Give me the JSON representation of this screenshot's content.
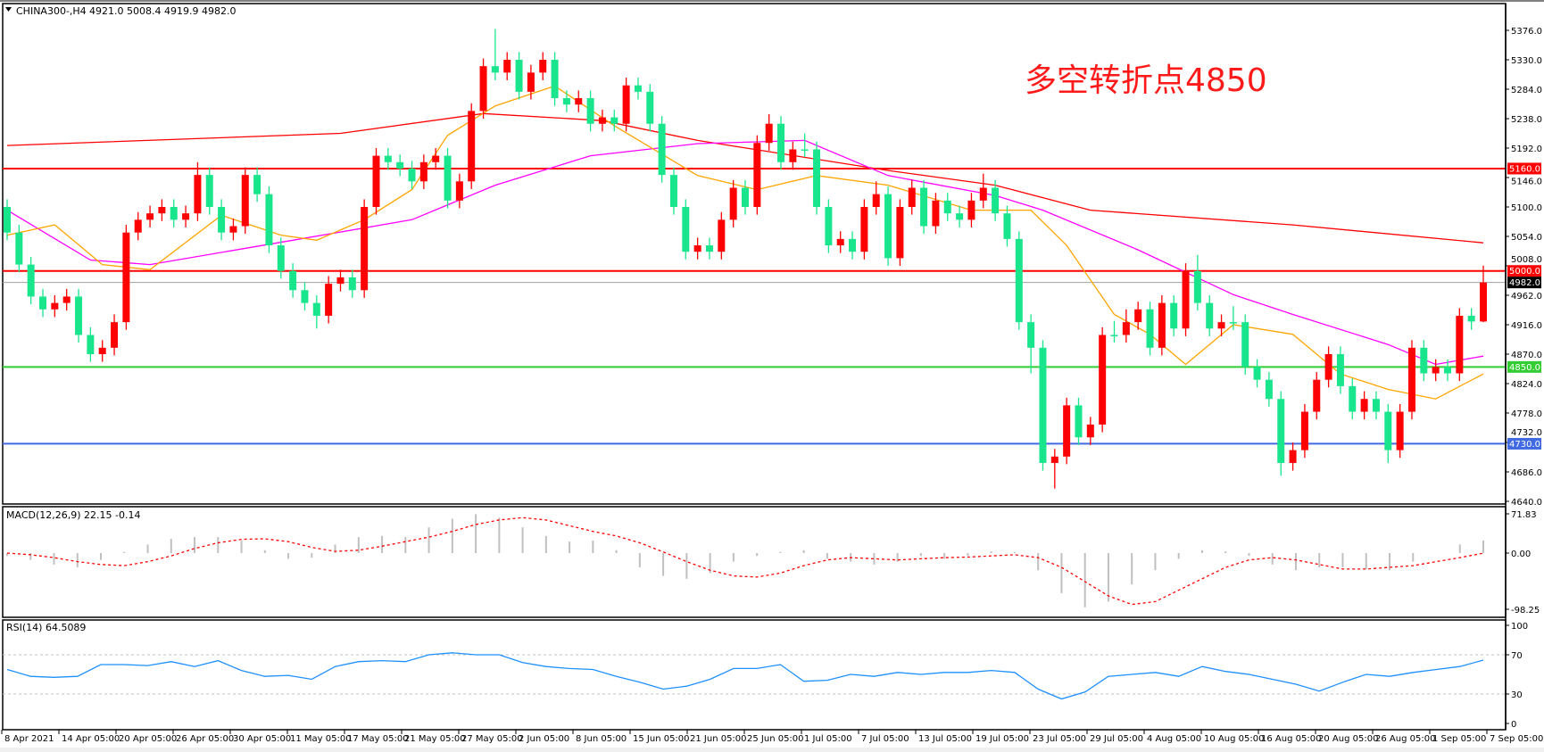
{
  "header": {
    "symbol": "CHINA300-,H4",
    "ohlc": "4921.0 5008.4 4919.9 4982.0",
    "dropdown_icon": "triangle-down-icon"
  },
  "annotation": "多空转折点4850",
  "colors": {
    "bull": "#ff0000",
    "bear": "#19e68c",
    "ma_fast": "#ffa500",
    "ma_mid": "#ff00ff",
    "ma_slow": "#ff0000",
    "macd_hist": "#c0c0c0",
    "macd_signal": "#ff0000",
    "rsi": "#1e90ff"
  },
  "levels": [
    {
      "price": 5160.0,
      "label": "5160.0",
      "color": "#ff0000"
    },
    {
      "price": 5000.0,
      "label": "5000.0",
      "color": "#ff0000"
    },
    {
      "price": 4850.0,
      "label": "4850.0",
      "color": "#32cd32"
    },
    {
      "price": 4730.0,
      "label": "4730.0",
      "color": "#4169e1"
    },
    {
      "price": 4982.0,
      "label": "4982.0",
      "color": "#000000",
      "line": "#a0a0a0"
    }
  ],
  "chart_data": [
    {
      "type": "candlestick",
      "title": "CHINA300-,H4",
      "ylim": [
        4640,
        5376
      ],
      "y_ticks": [
        "5376.0",
        "5330.0",
        "5284.0",
        "5238.0",
        "5192.0",
        "5146.0",
        "5100.0",
        "5054.0",
        "5008.0",
        "4962.0",
        "4916.0",
        "4870.0",
        "4824.0",
        "4778.0",
        "4732.0",
        "4686.0",
        "4640.0"
      ],
      "x_ticks": [
        "8 Apr 2021",
        "14 Apr 05:00",
        "20 Apr 05:00",
        "26 Apr 05:00",
        "30 Apr 05:00",
        "11 May 05:00",
        "17 May 05:00",
        "21 May 05:00",
        "27 May 05:00",
        "2 Jun 05:00",
        "8 Jun 05:00",
        "15 Jun 05:00",
        "21 Jun 05:00",
        "25 Jun 05:00",
        "1 Jul 05:00",
        "7 Jul 05:00",
        "13 Jul 05:00",
        "19 Jul 05:00",
        "23 Jul 05:00",
        "29 Jul 05:00",
        "4 Aug 05:00",
        "10 Aug 05:00",
        "16 Aug 05:00",
        "20 Aug 05:00",
        "26 Aug 05:00",
        "1 Sep 05:00",
        "7 Sep 05:00"
      ],
      "candles_ohlc": [
        [
          5100,
          5112,
          5048,
          5060
        ],
        [
          5060,
          5072,
          4998,
          5010
        ],
        [
          5010,
          5022,
          4948,
          4960
        ],
        [
          4960,
          4972,
          4928,
          4940
        ],
        [
          4940,
          4962,
          4928,
          4950
        ],
        [
          4950,
          4972,
          4938,
          4960
        ],
        [
          4960,
          4972,
          4888,
          4900
        ],
        [
          4900,
          4912,
          4858,
          4870
        ],
        [
          4870,
          4892,
          4858,
          4880
        ],
        [
          4880,
          4932,
          4868,
          4920
        ],
        [
          4920,
          5072,
          4908,
          5060
        ],
        [
          5060,
          5092,
          5048,
          5080
        ],
        [
          5080,
          5102,
          5068,
          5090
        ],
        [
          5090,
          5112,
          5078,
          5100
        ],
        [
          5100,
          5112,
          5068,
          5080
        ],
        [
          5080,
          5102,
          5068,
          5090
        ],
        [
          5090,
          5170,
          5078,
          5150
        ],
        [
          5150,
          5162,
          5088,
          5100
        ],
        [
          5100,
          5112,
          5048,
          5060
        ],
        [
          5060,
          5082,
          5048,
          5070
        ],
        [
          5070,
          5162,
          5058,
          5150
        ],
        [
          5150,
          5162,
          5108,
          5120
        ],
        [
          5120,
          5132,
          5028,
          5040
        ],
        [
          5040,
          5052,
          4988,
          5000
        ],
        [
          5000,
          5012,
          4958,
          4970
        ],
        [
          4970,
          4982,
          4938,
          4950
        ],
        [
          4950,
          4962,
          4910,
          4930
        ],
        [
          4930,
          4992,
          4918,
          4980
        ],
        [
          4980,
          5002,
          4968,
          4990
        ],
        [
          4990,
          5002,
          4958,
          4970
        ],
        [
          4970,
          5112,
          4958,
          5100
        ],
        [
          5100,
          5192,
          5088,
          5180
        ],
        [
          5180,
          5192,
          5158,
          5170
        ],
        [
          5170,
          5182,
          5148,
          5160
        ],
        [
          5160,
          5172,
          5128,
          5140
        ],
        [
          5140,
          5182,
          5128,
          5170
        ],
        [
          5170,
          5192,
          5158,
          5180
        ],
        [
          5180,
          5192,
          5098,
          5110
        ],
        [
          5110,
          5152,
          5098,
          5140
        ],
        [
          5140,
          5262,
          5128,
          5250
        ],
        [
          5250,
          5332,
          5238,
          5320
        ],
        [
          5320,
          5378,
          5298,
          5310
        ],
        [
          5310,
          5342,
          5298,
          5330
        ],
        [
          5330,
          5342,
          5268,
          5280
        ],
        [
          5280,
          5322,
          5268,
          5310
        ],
        [
          5310,
          5342,
          5298,
          5330
        ],
        [
          5330,
          5342,
          5258,
          5270
        ],
        [
          5270,
          5282,
          5248,
          5260
        ],
        [
          5260,
          5282,
          5248,
          5270
        ],
        [
          5270,
          5282,
          5218,
          5230
        ],
        [
          5230,
          5252,
          5218,
          5240
        ],
        [
          5240,
          5252,
          5218,
          5230
        ],
        [
          5230,
          5302,
          5218,
          5290
        ],
        [
          5290,
          5302,
          5268,
          5280
        ],
        [
          5280,
          5292,
          5218,
          5230
        ],
        [
          5230,
          5242,
          5138,
          5150
        ],
        [
          5150,
          5162,
          5088,
          5100
        ],
        [
          5100,
          5112,
          5018,
          5030
        ],
        [
          5030,
          5052,
          5018,
          5040
        ],
        [
          5040,
          5052,
          5018,
          5030
        ],
        [
          5030,
          5092,
          5018,
          5080
        ],
        [
          5080,
          5142,
          5068,
          5130
        ],
        [
          5130,
          5142,
          5088,
          5100
        ],
        [
          5100,
          5212,
          5088,
          5200
        ],
        [
          5200,
          5245,
          5188,
          5230
        ],
        [
          5230,
          5242,
          5158,
          5170
        ],
        [
          5170,
          5202,
          5158,
          5190
        ],
        [
          5190,
          5215,
          5178,
          5190
        ],
        [
          5190,
          5202,
          5088,
          5100
        ],
        [
          5100,
          5112,
          5028,
          5040
        ],
        [
          5040,
          5062,
          5028,
          5050
        ],
        [
          5050,
          5062,
          5018,
          5030
        ],
        [
          5030,
          5112,
          5018,
          5100
        ],
        [
          5100,
          5140,
          5088,
          5120
        ],
        [
          5120,
          5132,
          5008,
          5020
        ],
        [
          5020,
          5112,
          5008,
          5100
        ],
        [
          5100,
          5142,
          5088,
          5130
        ],
        [
          5130,
          5142,
          5058,
          5070
        ],
        [
          5070,
          5122,
          5058,
          5110
        ],
        [
          5110,
          5122,
          5078,
          5090
        ],
        [
          5090,
          5102,
          5068,
          5080
        ],
        [
          5080,
          5122,
          5068,
          5110
        ],
        [
          5110,
          5152,
          5098,
          5130
        ],
        [
          5130,
          5142,
          5078,
          5090
        ],
        [
          5090,
          5102,
          5038,
          5050
        ],
        [
          5050,
          5062,
          4908,
          4920
        ],
        [
          4920,
          4932,
          4840,
          4880
        ],
        [
          4880,
          4892,
          4688,
          4700
        ],
        [
          4700,
          4722,
          4660,
          4710
        ],
        [
          4710,
          4802,
          4698,
          4790
        ],
        [
          4790,
          4802,
          4728,
          4740
        ],
        [
          4740,
          4772,
          4728,
          4760
        ],
        [
          4760,
          4912,
          4748,
          4900
        ],
        [
          4900,
          4922,
          4888,
          4900
        ],
        [
          4900,
          4940,
          4888,
          4920
        ],
        [
          4920,
          4952,
          4908,
          4940
        ],
        [
          4940,
          4952,
          4868,
          4880
        ],
        [
          4880,
          4962,
          4868,
          4950
        ],
        [
          4950,
          4962,
          4898,
          4910
        ],
        [
          4910,
          5012,
          4898,
          5000
        ],
        [
          5000,
          5025,
          4938,
          4950
        ],
        [
          4950,
          4962,
          4898,
          4910
        ],
        [
          4910,
          4932,
          4898,
          4920
        ],
        [
          4920,
          4945,
          4908,
          4920
        ],
        [
          4920,
          4932,
          4838,
          4850
        ],
        [
          4850,
          4862,
          4818,
          4830
        ],
        [
          4830,
          4842,
          4788,
          4800
        ],
        [
          4800,
          4812,
          4680,
          4700
        ],
        [
          4700,
          4732,
          4688,
          4720
        ],
        [
          4720,
          4792,
          4708,
          4780
        ],
        [
          4780,
          4842,
          4768,
          4830
        ],
        [
          4830,
          4882,
          4818,
          4870
        ],
        [
          4870,
          4882,
          4808,
          4820
        ],
        [
          4820,
          4832,
          4768,
          4780
        ],
        [
          4780,
          4812,
          4768,
          4800
        ],
        [
          4800,
          4812,
          4768,
          4780
        ],
        [
          4780,
          4792,
          4700,
          4720
        ],
        [
          4720,
          4792,
          4708,
          4780
        ],
        [
          4780,
          4892,
          4768,
          4880
        ],
        [
          4880,
          4892,
          4828,
          4840
        ],
        [
          4840,
          4862,
          4828,
          4850
        ],
        [
          4850,
          4862,
          4828,
          4840
        ],
        [
          4840,
          4942,
          4828,
          4930
        ],
        [
          4930,
          4942,
          4908,
          4921
        ],
        [
          4921,
          5008.4,
          4919.9,
          4982
        ]
      ],
      "moving_averages": [
        {
          "color": "#ff0000",
          "points": [
            [
              0,
              5196
            ],
            [
              28,
              5215
            ],
            [
              40,
              5246
            ],
            [
              50,
              5235
            ],
            [
              58,
              5204
            ],
            [
              74,
              5157
            ],
            [
              83,
              5134
            ],
            [
              91,
              5095
            ],
            [
              108,
              5072
            ],
            [
              124,
              5044
            ]
          ]
        },
        {
          "color": "#ff00ff",
          "points": [
            [
              0,
              5095
            ],
            [
              7,
              5017
            ],
            [
              12,
              5010
            ],
            [
              24,
              5048
            ],
            [
              34,
              5080
            ],
            [
              41,
              5134
            ],
            [
              49,
              5180
            ],
            [
              58,
              5199
            ],
            [
              67,
              5204
            ],
            [
              74,
              5149
            ],
            [
              83,
              5118
            ],
            [
              87,
              5095
            ],
            [
              95,
              5033
            ],
            [
              103,
              4963
            ],
            [
              108,
              4932
            ],
            [
              116,
              4885
            ],
            [
              120,
              4854
            ],
            [
              124,
              4867
            ]
          ]
        },
        {
          "color": "#ffa500",
          "points": [
            [
              0,
              5056
            ],
            [
              4,
              5072
            ],
            [
              8,
              5010
            ],
            [
              12,
              5002
            ],
            [
              18,
              5087
            ],
            [
              23,
              5056
            ],
            [
              26,
              5048
            ],
            [
              30,
              5080
            ],
            [
              34,
              5127
            ],
            [
              37,
              5212
            ],
            [
              41,
              5258
            ],
            [
              46,
              5289
            ],
            [
              51,
              5227
            ],
            [
              58,
              5149
            ],
            [
              63,
              5127
            ],
            [
              68,
              5149
            ],
            [
              74,
              5134
            ],
            [
              81,
              5095
            ],
            [
              86,
              5095
            ],
            [
              89,
              5040
            ],
            [
              93,
              4932
            ],
            [
              96,
              4901
            ],
            [
              99,
              4854
            ],
            [
              103,
              4916
            ],
            [
              108,
              4901
            ],
            [
              112,
              4839
            ],
            [
              116,
              4815
            ],
            [
              120,
              4800
            ],
            [
              124,
              4839
            ]
          ]
        }
      ]
    },
    {
      "type": "bar+line",
      "label": "MACD(12,26,9) 22.15 -0.14",
      "ylim": [
        -98.25,
        71.83
      ],
      "y_ticks": [
        "71.83",
        "0.00",
        "-98.25"
      ],
      "histogram": [
        -5,
        -12,
        -20,
        -25,
        -12,
        2,
        15,
        25,
        28,
        28,
        22,
        5,
        -10,
        -8,
        15,
        28,
        30,
        28,
        45,
        60,
        68,
        62,
        45,
        30,
        20,
        22,
        5,
        -25,
        -40,
        -45,
        -35,
        -15,
        -5,
        2,
        5,
        -10,
        -15,
        -20,
        -15,
        -5,
        -10,
        -5,
        3,
        2,
        -30,
        -70,
        -95,
        -85,
        -55,
        -30,
        -10,
        5,
        3,
        -5,
        -20,
        -30,
        -25,
        -25,
        -28,
        -30,
        -15,
        0,
        15,
        22.15
      ],
      "signal": [
        0,
        -3,
        -8,
        -15,
        -20,
        -22,
        -15,
        -5,
        8,
        18,
        24,
        25,
        20,
        10,
        3,
        5,
        12,
        20,
        28,
        38,
        50,
        58,
        62,
        58,
        48,
        38,
        30,
        18,
        2,
        -15,
        -30,
        -40,
        -42,
        -35,
        -22,
        -12,
        -8,
        -10,
        -12,
        -10,
        -8,
        -7,
        -5,
        -3,
        -8,
        -25,
        -50,
        -75,
        -90,
        -85,
        -65,
        -45,
        -25,
        -12,
        -8,
        -12,
        -20,
        -28,
        -28,
        -25,
        -22,
        -15,
        -8,
        -0.14
      ]
    },
    {
      "type": "line",
      "label": "RSI(14) 64.5089",
      "ylim": [
        0,
        100
      ],
      "y_ticks": [
        "100",
        "70",
        "30",
        "0"
      ],
      "levels": [
        70,
        30
      ],
      "values": [
        55,
        48,
        47,
        48,
        60,
        60,
        59,
        63,
        58,
        64,
        54,
        48,
        49,
        45,
        58,
        63,
        64,
        63,
        70,
        72,
        70,
        70,
        62,
        58,
        56,
        55,
        48,
        42,
        35,
        38,
        45,
        56,
        56,
        60,
        43,
        44,
        50,
        48,
        52,
        50,
        52,
        52,
        54,
        52,
        35,
        25,
        32,
        48,
        50,
        52,
        48,
        58,
        53,
        50,
        45,
        40,
        33,
        42,
        50,
        48,
        52,
        55,
        58,
        64.5089
      ]
    }
  ]
}
